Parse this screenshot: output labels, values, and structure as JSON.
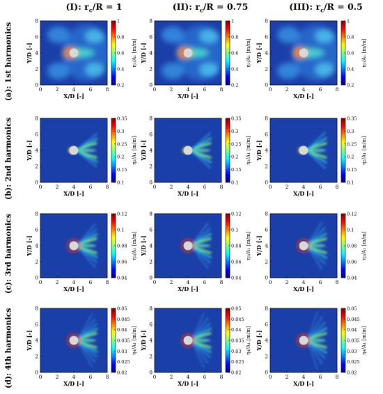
{
  "column_titles": [
    "(I): rₑ/R = 1",
    "(II): rₑ/R = 0.75",
    "(III): rₑ/R = 0.5"
  ],
  "column_titles_display": [
    {
      "roman": "(I)",
      "ratio": "r",
      "sub": "c",
      "rest": "/R = 1"
    },
    {
      "roman": "(II)",
      "ratio": "r",
      "sub": "c",
      "rest": "/R = 0.75"
    },
    {
      "roman": "(III)",
      "ratio": "r",
      "sub": "c",
      "rest": "/R = 0.5"
    }
  ],
  "row_titles": [
    "(a): 1st harmonics",
    "(b): 2nd harmonics",
    "(c): 3rd harmonics",
    "(d): 4th harmonics"
  ],
  "colors": {
    "background_field": "#1b3fa8",
    "cylinder": "#d8d8d8",
    "colormap": [
      "#00007f",
      "#0000ff",
      "#0080ff",
      "#00ffff",
      "#80ff80",
      "#ffff00",
      "#ff8000",
      "#ff0000",
      "#7f0000"
    ]
  },
  "chart_data": [
    {
      "type": "heatmap",
      "harmonic": 1,
      "xlabel": "X/D [-]",
      "ylabel": "Y/D [-]",
      "xticks": [
        "0",
        "2",
        "4",
        "6",
        "8"
      ],
      "yticks": [
        "0",
        "2",
        "4",
        "6",
        "8"
      ],
      "xlim": [
        0,
        8
      ],
      "ylim": [
        0,
        8
      ],
      "colorbar": {
        "label_sym": "η",
        "label_sub": "1",
        "label_rest": "/A",
        "label_sub2": "1",
        "label_unit": " [m/m]",
        "ticks": [
          "0.2",
          "0.4",
          "0.6",
          "0.8",
          "1"
        ],
        "range": [
          0.2,
          1
        ]
      }
    },
    {
      "type": "heatmap",
      "harmonic": 2,
      "xlabel": "X/D [-]",
      "ylabel": "Y/D [-]",
      "xticks": [
        "0",
        "2",
        "4",
        "6",
        "8"
      ],
      "yticks": [
        "0",
        "2",
        "4",
        "6",
        "8"
      ],
      "xlim": [
        0,
        8
      ],
      "ylim": [
        0,
        8
      ],
      "colorbar": {
        "label_sym": "η",
        "label_sub": "2",
        "label_rest": "/A",
        "label_sub2": "1",
        "label_unit": " [m/m]",
        "ticks": [
          "0.1",
          "0.15",
          "0.2",
          "0.25",
          "0.3",
          "0.35"
        ],
        "range": [
          0.1,
          0.35
        ]
      }
    },
    {
      "type": "heatmap",
      "harmonic": 3,
      "xlabel": "X/D [-]",
      "ylabel": "Y/D [-]",
      "xticks": [
        "0",
        "2",
        "4",
        "6",
        "8"
      ],
      "yticks": [
        "0",
        "2",
        "4",
        "6",
        "8"
      ],
      "xlim": [
        0,
        8
      ],
      "ylim": [
        0,
        8
      ],
      "colorbar": {
        "label_sym": "η",
        "label_sub": "3",
        "label_rest": "/A",
        "label_sub2": "1",
        "label_unit": " [m/m]",
        "ticks": [
          "0.04",
          "0.06",
          "0.08",
          "0.1",
          "0.12"
        ],
        "range": [
          0.04,
          0.12
        ]
      }
    },
    {
      "type": "heatmap",
      "harmonic": 4,
      "xlabel": "X/D [-]",
      "ylabel": "Y/D [-]",
      "xticks": [
        "0",
        "2",
        "4",
        "6",
        "8"
      ],
      "yticks": [
        "0",
        "2",
        "4",
        "6",
        "8"
      ],
      "xlim": [
        0,
        8
      ],
      "ylim": [
        0,
        8
      ],
      "colorbar": {
        "label_sym": "η",
        "label_sub": "4",
        "label_rest": "/A",
        "label_sub2": "1",
        "label_unit": " [m/m]",
        "ticks": [
          "0.02",
          "0.025",
          "0.03",
          "0.035",
          "0.04",
          "0.045",
          "0.05"
        ],
        "range": [
          0.02,
          0.05
        ]
      }
    }
  ]
}
